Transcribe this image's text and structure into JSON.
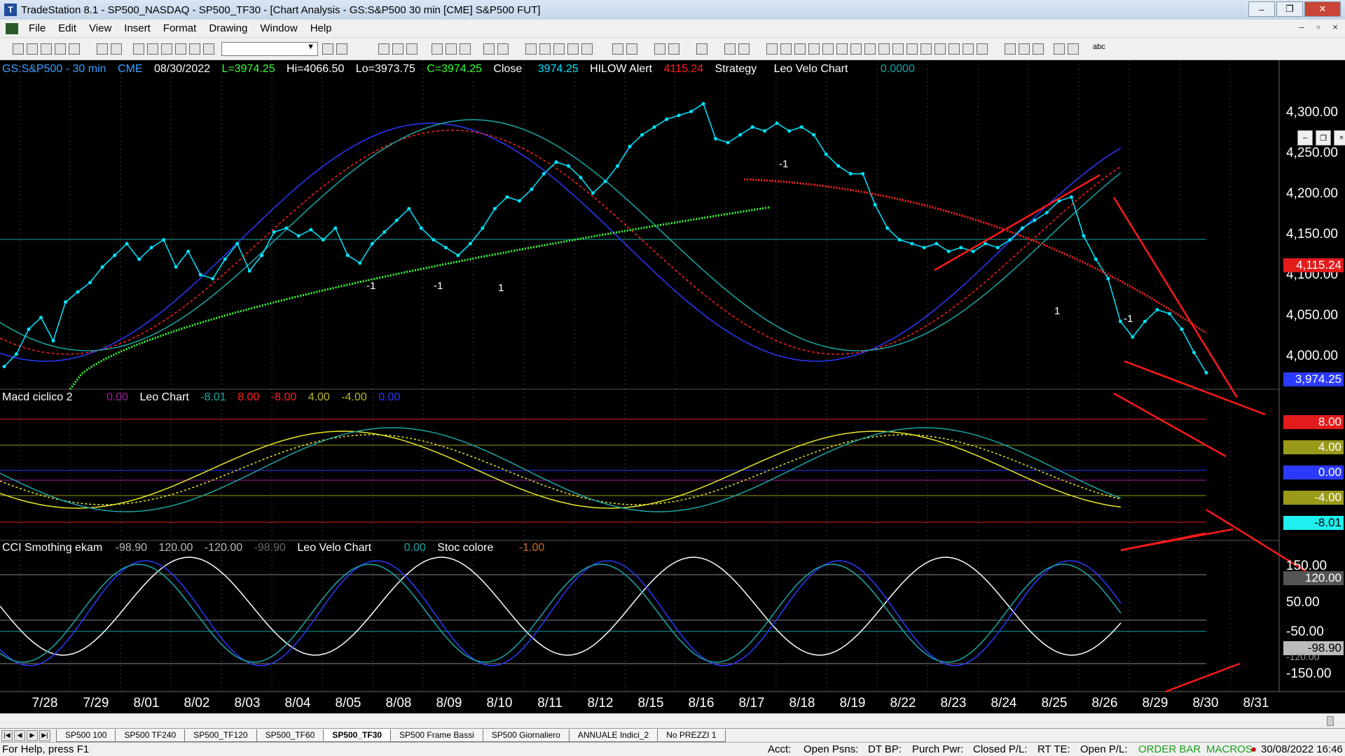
{
  "window": {
    "title": "TradeStation 8.1 - SP500_NASDAQ - SP500_TF30 - [Chart Analysis - GS:S&P500  30 min  [CME] S&P500 FUT]",
    "minimize": "–",
    "maximize": "❐",
    "close": "✕"
  },
  "menu": [
    "File",
    "Edit",
    "View",
    "Insert",
    "Format",
    "Drawing",
    "Window",
    "Help"
  ],
  "mdi": [
    "–",
    "▫",
    "×"
  ],
  "toolbar": {
    "abc_label": "abc"
  },
  "header": {
    "symbol": "GS:S&P500 - 30 min",
    "exchange": "CME",
    "date": "08/30/2022",
    "last": "L=3974.25",
    "high": "Hi=4066.50",
    "low": "Lo=3973.75",
    "close_val": "C=3974.25",
    "close_label": "Close",
    "close_price": "3974.25",
    "hilow_label": "HILOW Alert",
    "hilow_value": "4115.24",
    "strategy_label": "Strategy",
    "leovelo_label": "Leo Velo Chart",
    "leovelo_value": "0.0000"
  },
  "macd_header": {
    "name": "Macd ciclico 2",
    "v0": "0.00",
    "leo_label": "Leo Chart",
    "v1": "-8.01",
    "v2": "8.00",
    "v3": "-8.00",
    "v4": "4.00",
    "v5": "-4.00",
    "v6": "0.00"
  },
  "cci_header": {
    "name": "CCI Smothing ekam",
    "v0": "-98.90",
    "v1": "120.00",
    "v2": "-120.00",
    "v3": "-98.90",
    "leovelo_label": "Leo Velo Chart",
    "leovelo_value": "0.00",
    "stoc_label": "Stoc colore",
    "stoc_value": "-1.00"
  },
  "price_axis": [
    "4,300.00",
    "4,250.00",
    "4,200.00",
    "4,150.00",
    "4,100.00",
    "4,050.00",
    "4,000.00"
  ],
  "price_markers": {
    "hilow": "4,115.24",
    "last": "3,974.25",
    "m1": "8.00",
    "m2": "4.00",
    "m3": "0.00",
    "m4": "-4.00",
    "m5": "-8.01",
    "c1": "150.00",
    "c2": "120.00",
    "c3": "50.00",
    "c4": "-50.00",
    "c5": "-98.90",
    "c6": "-120.00",
    "c7": "-150.00"
  },
  "dates": [
    "7/28",
    "7/29",
    "8/01",
    "8/02",
    "8/03",
    "8/04",
    "8/05",
    "8/08",
    "8/09",
    "8/10",
    "8/11",
    "8/12",
    "8/15",
    "8/16",
    "8/17",
    "8/18",
    "8/19",
    "8/22",
    "8/23",
    "8/24",
    "8/25",
    "8/26",
    "8/29",
    "8/30",
    "8/31"
  ],
  "signals": [
    "-1",
    "1",
    "-1",
    "1",
    "-1",
    "1",
    "-1"
  ],
  "tabs": [
    "SP500 100",
    "SP500 TF240",
    "SP500_TF120",
    "SP500_TF60",
    "SP500_TF30",
    "SP500 Frame Bassi",
    "SP500 Giornaliero",
    "ANNUALE Indici_2",
    "No PREZZI 1"
  ],
  "tab_nav": [
    "|◀",
    "◀",
    "▶",
    "▶|"
  ],
  "active_tab": "SP500_TF30",
  "status": {
    "help": "For Help, press F1",
    "acct": "Acct:",
    "open_psns": "Open Psns:",
    "dt_bp": "DT BP:",
    "purch_pwr": "Purch Pwr:",
    "closed_pl": "Closed P/L:",
    "rt_te": "RT TE:",
    "open_pl": "Open P/L:",
    "order_bar": "ORDER BAR",
    "macros": "MACROS",
    "datetime": "30/08/2022 16:46"
  },
  "colors": {
    "chart_bg": "#000000",
    "price_line": "#00e5ff",
    "ma_green": "#33ff33",
    "ma_red": "#ff2020",
    "wave_blue": "#2a3aff",
    "wave_teal": "#1aa6a6",
    "yellow": "#e8e82a",
    "trendline": "#ff1a1a"
  },
  "chart_data": {
    "type": "line",
    "title": "GS:S&P500 - 30 min",
    "ylim": [
      3960,
      4340
    ],
    "x_ticks": [
      "7/28",
      "7/29",
      "8/01",
      "8/02",
      "8/03",
      "8/04",
      "8/05",
      "8/08",
      "8/09",
      "8/10",
      "8/11",
      "8/12",
      "8/15",
      "8/16",
      "8/17",
      "8/18",
      "8/19",
      "8/22",
      "8/23",
      "8/24",
      "8/25",
      "8/26",
      "8/29",
      "8/30",
      "8/31"
    ],
    "series": [
      {
        "values": [
          3982,
          3998,
          4030,
          4045,
          4015,
          4065,
          4078,
          4090,
          4110,
          4125,
          4140,
          4120,
          4135,
          4145,
          4110,
          4130,
          4100,
          4095,
          4120,
          4140,
          4105,
          4125,
          4155,
          4160,
          4150,
          4158,
          4145,
          4160,
          4125,
          4115,
          4140,
          4155,
          4170,
          4185,
          4160,
          4145,
          4135,
          4125,
          4140,
          4160,
          4185,
          4200,
          4195,
          4210,
          4230,
          4245,
          4240,
          4225,
          4205,
          4220,
          4240,
          4265,
          4280,
          4290,
          4300,
          4305,
          4310,
          4320,
          4275,
          4270,
          4280,
          4290,
          4285,
          4295,
          4285,
          4290,
          4280,
          4255,
          4240,
          4230,
          4230,
          4190,
          4160,
          4145,
          4140,
          4135,
          4140,
          4130,
          4135,
          4130,
          4140,
          4135,
          4145,
          4160,
          4170,
          4180,
          4195,
          4200,
          4150,
          4120,
          4095,
          4040,
          4020,
          4040,
          4055,
          4050,
          4030,
          4000,
          3974
        ]
      }
    ]
  }
}
